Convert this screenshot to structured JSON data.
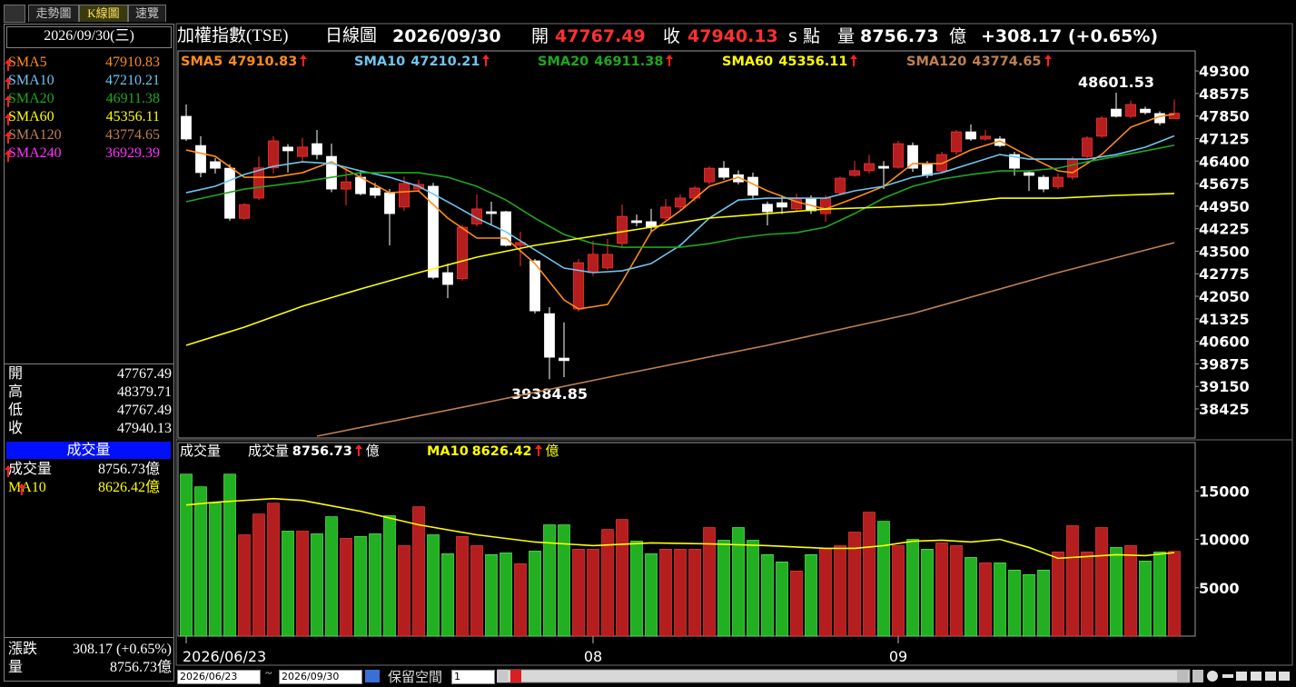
{
  "toolbar": {
    "tabs": [
      "走勢圖",
      "K線圖",
      "速覽"
    ]
  },
  "header": {
    "name": "加權指數(TSE)",
    "period": "日線圖",
    "date": "2026/09/30",
    "open_label": "開",
    "open": 47767.49,
    "close_label": "收",
    "close": 47940.13,
    "unit": "s 點",
    "volume_label": "量",
    "volume": 8756.73,
    "volume_unit": "億",
    "change": "+308.17 (+0.65%)"
  },
  "sidebar": {
    "date": "2026/09/30(三)",
    "quote": [
      {
        "label": "開",
        "value": 47767.49
      },
      {
        "label": "高",
        "value": 48379.71
      },
      {
        "label": "低",
        "value": 47767.49
      },
      {
        "label": "收",
        "value": 47940.13
      }
    ],
    "volume_title": "成交量",
    "volume_rows": [
      {
        "label": "成交量",
        "value": 8756.73,
        "unit": "億"
      },
      {
        "label": "MA10",
        "value": 8626.42,
        "unit": "億"
      }
    ],
    "change_label": "漲跌",
    "change": "308.17 (+0.65%)",
    "vol_label": "量",
    "vol": 8756.73,
    "vol_unit": "億"
  },
  "chart_data": [
    {
      "type": "candlestick",
      "up_color": "#b41e1e",
      "down_color": "#ffffff",
      "open": [
        47840,
        46900,
        46380,
        46170,
        44560,
        45210,
        46180,
        46850,
        46550,
        46960,
        46550,
        45500,
        45880,
        45530,
        45380,
        44920,
        45500,
        45590,
        42810,
        42620,
        44380,
        44770,
        44770,
        43690,
        43190,
        41490,
        40060,
        41640,
        42810,
        42960,
        43750,
        44480,
        44450,
        44570,
        44920,
        45210,
        45730,
        46170,
        45960,
        45880,
        45010,
        45060,
        44860,
        45210,
        44710,
        45380,
        45940,
        46090,
        46230,
        46200,
        46900,
        46320,
        46080,
        46700,
        47340,
        47110,
        47110,
        46610,
        46030,
        45880,
        45580,
        45880,
        46550,
        47200,
        48070,
        47840,
        48070,
        47930,
        47767.49
      ],
      "high": [
        48220,
        47200,
        46500,
        46300,
        45050,
        46550,
        47200,
        46950,
        47150,
        47400,
        46960,
        46200,
        46100,
        45700,
        45500,
        45900,
        45800,
        45700,
        43100,
        44350,
        45330,
        45090,
        44800,
        44130,
        43250,
        41700,
        41210,
        43250,
        43830,
        43900,
        45000,
        44680,
        44860,
        45180,
        45330,
        45600,
        46230,
        46400,
        46100,
        46030,
        45100,
        45300,
        45350,
        45300,
        45300,
        45900,
        46400,
        46600,
        46400,
        47050,
        47000,
        46400,
        46700,
        47400,
        47580,
        47400,
        47200,
        46700,
        46100,
        45950,
        46000,
        46550,
        47200,
        47850,
        48601.53,
        48350,
        48150,
        48000,
        48379.71
      ],
      "low": [
        47050,
        45880,
        46000,
        44480,
        44500,
        45150,
        46000,
        46030,
        46350,
        46450,
        45400,
        44980,
        45300,
        45200,
        43690,
        44800,
        45400,
        42600,
        41990,
        42550,
        44300,
        44370,
        43650,
        43020,
        41500,
        39384.85,
        39450,
        41550,
        42700,
        42900,
        43650,
        44300,
        44100,
        44500,
        44800,
        45100,
        45650,
        45800,
        45650,
        45150,
        44330,
        44700,
        44800,
        44700,
        44450,
        45300,
        45900,
        46000,
        45500,
        46150,
        46050,
        45850,
        46000,
        46600,
        47050,
        47050,
        46850,
        45930,
        45440,
        45400,
        45500,
        45800,
        46500,
        47150,
        47800,
        47780,
        47900,
        47550,
        47767.49
      ],
      "close": [
        47110,
        46030,
        46170,
        44560,
        45000,
        46180,
        47050,
        46730,
        46850,
        46610,
        45500,
        45730,
        45350,
        45300,
        44710,
        45680,
        45650,
        42660,
        42430,
        44270,
        44860,
        44710,
        43690,
        43780,
        41580,
        40090,
        39980,
        43130,
        43400,
        43400,
        44620,
        44420,
        44270,
        44920,
        45210,
        45530,
        46170,
        45880,
        45730,
        45300,
        44770,
        44920,
        45210,
        44800,
        45210,
        45850,
        46090,
        46320,
        46170,
        46960,
        46170,
        45940,
        46610,
        47340,
        47110,
        47200,
        46900,
        46170,
        45940,
        45500,
        45880,
        46470,
        47140,
        47780,
        47840,
        48220,
        47960,
        47630,
        47940.13
      ],
      "ylim": [
        37490,
        49945
      ],
      "yticks": [
        49300,
        48575,
        47850,
        47125,
        46400,
        45675,
        44950,
        44225,
        43500,
        42775,
        42050,
        41325,
        40600,
        39875,
        39150,
        38425
      ],
      "xticks": [
        {
          "value": 0,
          "label": "2026/06/23"
        },
        {
          "value": 28,
          "label": "08"
        },
        {
          "value": 49,
          "label": "09"
        }
      ],
      "series": [
        {
          "name": "SMA5",
          "color": "#ff8c1a",
          "current": 47910.83,
          "x": [
            0,
            2,
            4,
            6,
            8,
            10,
            12,
            14,
            16,
            18,
            20,
            22,
            24,
            26,
            27,
            29,
            30,
            32,
            34,
            36,
            38,
            40,
            42,
            44,
            46,
            48,
            50,
            52,
            54,
            56,
            58,
            60,
            61,
            63,
            65,
            67,
            68
          ],
          "values": [
            46757,
            46552,
            45880,
            45880,
            46026,
            46377,
            45880,
            45383,
            45442,
            44565,
            43922,
            43922,
            43103,
            41934,
            41642,
            41788,
            42519,
            44126,
            44799,
            45588,
            45880,
            45442,
            45091,
            44857,
            45208,
            45588,
            46319,
            46319,
            46757,
            47049,
            46552,
            46085,
            46026,
            46611,
            47488,
            47839,
            47910.83
          ]
        },
        {
          "name": "SMA10",
          "color": "#6ec6f0",
          "current": 47210.21,
          "x": [
            0,
            2,
            4,
            6,
            8,
            10,
            12,
            14,
            16,
            18,
            20,
            22,
            24,
            26,
            28,
            30,
            32,
            34,
            36,
            38,
            40,
            42,
            44,
            46,
            48,
            50,
            52,
            54,
            56,
            58,
            60,
            62,
            64,
            66,
            68
          ],
          "values": [
            45383,
            45588,
            45968,
            46231,
            46377,
            46319,
            46085,
            45880,
            45588,
            45091,
            44565,
            44126,
            43542,
            42957,
            42811,
            42869,
            43103,
            43688,
            44565,
            45149,
            45208,
            45208,
            45208,
            45442,
            45588,
            45880,
            46026,
            46319,
            46611,
            46465,
            46465,
            46465,
            46611,
            46845,
            47210.21
          ]
        },
        {
          "name": "SMA20",
          "color": "#1ea81e",
          "current": 46911.38,
          "x": [
            0,
            4,
            8,
            12,
            16,
            18,
            20,
            22,
            24,
            26,
            28,
            30,
            32,
            34,
            36,
            38,
            40,
            42,
            44,
            46,
            48,
            50,
            52,
            54,
            56,
            58,
            60,
            62,
            64,
            66,
            68
          ],
          "values": [
            45091,
            45500,
            45734,
            46026,
            46026,
            45880,
            45588,
            45149,
            44565,
            44039,
            43746,
            43629,
            43629,
            43629,
            43746,
            43922,
            44039,
            44097,
            44273,
            44711,
            45208,
            45588,
            45822,
            45968,
            46085,
            46085,
            46173,
            46377,
            46552,
            46728,
            46911.38
          ]
        },
        {
          "name": "SMA60",
          "color": "#ffff00",
          "current": 45356.11,
          "x": [
            0,
            4,
            8,
            12,
            16,
            20,
            24,
            28,
            32,
            36,
            40,
            44,
            48,
            52,
            56,
            60,
            64,
            68
          ],
          "values": [
            40473,
            41057,
            41730,
            42285,
            42811,
            43308,
            43688,
            43980,
            44273,
            44565,
            44711,
            44857,
            44916,
            45003,
            45208,
            45208,
            45296,
            45356.11
          ]
        },
        {
          "name": "SMA120",
          "color": "#c08050",
          "current": 43774.65,
          "x": [
            9,
            20,
            30,
            40,
            50,
            60,
            68
          ],
          "values": [
            37549,
            38572,
            39537,
            40473,
            41496,
            42811,
            43774.65
          ]
        },
        {
          "name": "SMA240",
          "color": "#ff33ff",
          "current": 36929.39
        }
      ]
    },
    {
      "type": "bar",
      "title": "成交量",
      "legend_label": "成交量",
      "legend_value": 8756.73,
      "unit": "億",
      "up_color": "#b41e1e",
      "down_color": "#22b022",
      "values": [
        16740,
        15430,
        13740,
        16740,
        10470,
        12620,
        13740,
        10850,
        10850,
        10570,
        12340,
        10100,
        10290,
        10570,
        12440,
        9350,
        13370,
        10470,
        8510,
        10290,
        9350,
        8420,
        8600,
        7480,
        8790,
        11500,
        11500,
        8980,
        8980,
        11030,
        12060,
        9820,
        8510,
        8980,
        8980,
        8980,
        11220,
        9910,
        11220,
        9910,
        8420,
        7670,
        6730,
        8420,
        9070,
        9350,
        10750,
        12810,
        11870,
        9350,
        10000,
        8980,
        9630,
        9350,
        8130,
        7570,
        7570,
        6830,
        6360,
        6830,
        8700,
        11410,
        8700,
        11220,
        9160,
        9350,
        7760,
        8700,
        8756.73
      ],
      "ylim": [
        0,
        20000
      ],
      "yticks": [
        5000,
        10000,
        15000
      ],
      "series": [
        {
          "name": "MA10",
          "color": "#ffff00",
          "current": 8626.42,
          "x": [
            0,
            2,
            6,
            8,
            12,
            16,
            20,
            24,
            28,
            32,
            36,
            40,
            44,
            46,
            48,
            50,
            52,
            54,
            56,
            58,
            60,
            62,
            64,
            66,
            68
          ],
          "values": [
            13550,
            13830,
            14210,
            14020,
            12900,
            11500,
            10470,
            9720,
            9350,
            9630,
            9530,
            9350,
            9070,
            9070,
            9350,
            9810,
            9910,
            9720,
            10000,
            9160,
            8040,
            8220,
            8410,
            8320,
            8626.42
          ]
        }
      ]
    }
  ],
  "bottom": {
    "date_from": "2026/06/23",
    "sep": "~",
    "date_to": "2026/09/30",
    "reserve_label": "保留空間",
    "reserve": "1"
  }
}
